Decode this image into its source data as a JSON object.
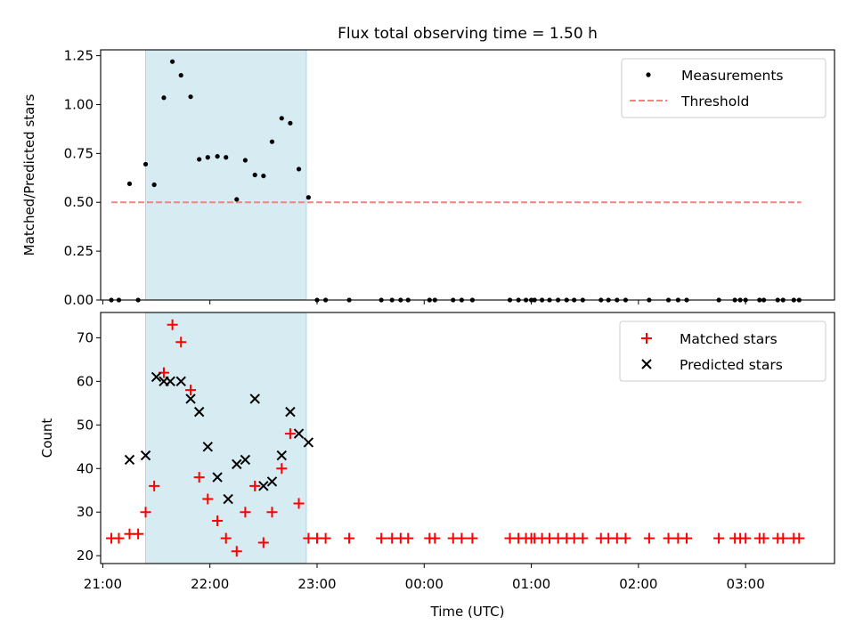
{
  "chart_data": {
    "title": "Flux total observing time = 1.50 h",
    "xlabel": "Time (UTC)",
    "x_tick_labels": [
      "21:00",
      "22:00",
      "23:00",
      "00:00",
      "01:00",
      "02:00",
      "03:00"
    ],
    "x_tick_hours": [
      21,
      22,
      23,
      24,
      25,
      26,
      27
    ],
    "xlim": [
      20.98,
      27.83
    ],
    "shaded_span": [
      21.4,
      22.9
    ],
    "colors": {
      "shade": "#add8e6",
      "threshold": "#ff7f7f",
      "matched": "#ff0000",
      "predicted": "#000000",
      "measure": "#000000"
    },
    "panels": [
      {
        "type": "scatter",
        "ylabel": "Matched/Predicted stars",
        "ylim": [
          0,
          1.28
        ],
        "yticks": [
          0,
          0.25,
          0.5,
          0.75,
          1.0,
          1.25
        ],
        "ytick_labels": [
          "0.00",
          "0.25",
          "0.50",
          "0.75",
          "1.00",
          "1.25"
        ],
        "legend_position": "upper right",
        "threshold": {
          "name": "Threshold",
          "y": 0.5,
          "x_range": [
            21.08,
            27.52
          ]
        },
        "series": [
          {
            "name": "Measurements",
            "points": [
              [
                21.08,
                0
              ],
              [
                21.15,
                0
              ],
              [
                21.25,
                0.595
              ],
              [
                21.33,
                0
              ],
              [
                21.4,
                0.695
              ],
              [
                21.48,
                0.59
              ],
              [
                21.57,
                1.035
              ],
              [
                21.65,
                1.22
              ],
              [
                21.73,
                1.15
              ],
              [
                21.82,
                1.04
              ],
              [
                21.9,
                0.72
              ],
              [
                21.98,
                0.73
              ],
              [
                22.07,
                0.735
              ],
              [
                22.15,
                0.73
              ],
              [
                22.25,
                0.515
              ],
              [
                22.33,
                0.715
              ],
              [
                22.42,
                0.64
              ],
              [
                22.5,
                0.635
              ],
              [
                22.58,
                0.81
              ],
              [
                22.67,
                0.93
              ],
              [
                22.75,
                0.905
              ],
              [
                22.83,
                0.67
              ],
              [
                22.92,
                0.525
              ],
              [
                23.0,
                0
              ],
              [
                23.08,
                0
              ],
              [
                23.3,
                0
              ],
              [
                23.6,
                0
              ],
              [
                23.7,
                0
              ],
              [
                23.78,
                0
              ],
              [
                23.85,
                0
              ],
              [
                24.05,
                0
              ],
              [
                24.1,
                0
              ],
              [
                24.27,
                0
              ],
              [
                24.35,
                0
              ],
              [
                24.45,
                0
              ],
              [
                24.8,
                0
              ],
              [
                24.88,
                0
              ],
              [
                24.95,
                0
              ],
              [
                25.0,
                0
              ],
              [
                25.03,
                0
              ],
              [
                25.1,
                0
              ],
              [
                25.17,
                0
              ],
              [
                25.25,
                0
              ],
              [
                25.33,
                0
              ],
              [
                25.4,
                0
              ],
              [
                25.48,
                0
              ],
              [
                25.65,
                0
              ],
              [
                25.72,
                0
              ],
              [
                25.8,
                0
              ],
              [
                25.88,
                0
              ],
              [
                26.1,
                0
              ],
              [
                26.28,
                0
              ],
              [
                26.37,
                0
              ],
              [
                26.45,
                0
              ],
              [
                26.75,
                0
              ],
              [
                26.9,
                0
              ],
              [
                26.95,
                0
              ],
              [
                27.0,
                0
              ],
              [
                27.13,
                0
              ],
              [
                27.17,
                0
              ],
              [
                27.3,
                0
              ],
              [
                27.35,
                0
              ],
              [
                27.45,
                0
              ],
              [
                27.5,
                0
              ]
            ]
          }
        ]
      },
      {
        "type": "scatter",
        "ylabel": "Count",
        "ylim": [
          18.2,
          75.8
        ],
        "yticks": [
          20,
          30,
          40,
          50,
          60,
          70
        ],
        "ytick_labels": [
          "20",
          "30",
          "40",
          "50",
          "60",
          "70"
        ],
        "legend_position": "upper right",
        "series": [
          {
            "name": "Matched stars",
            "points": [
              [
                21.08,
                24
              ],
              [
                21.15,
                24
              ],
              [
                21.25,
                25
              ],
              [
                21.33,
                25
              ],
              [
                21.4,
                30
              ],
              [
                21.48,
                36
              ],
              [
                21.57,
                62
              ],
              [
                21.65,
                73
              ],
              [
                21.73,
                69
              ],
              [
                21.82,
                58
              ],
              [
                21.9,
                38
              ],
              [
                21.98,
                33
              ],
              [
                22.07,
                28
              ],
              [
                22.15,
                24
              ],
              [
                22.25,
                21
              ],
              [
                22.33,
                30
              ],
              [
                22.42,
                36
              ],
              [
                22.5,
                23
              ],
              [
                22.58,
                30
              ],
              [
                22.67,
                40
              ],
              [
                22.75,
                48
              ],
              [
                22.83,
                32
              ],
              [
                22.92,
                24
              ],
              [
                23.0,
                24
              ],
              [
                23.08,
                24
              ],
              [
                23.3,
                24
              ],
              [
                23.6,
                24
              ],
              [
                23.7,
                24
              ],
              [
                23.78,
                24
              ],
              [
                23.85,
                24
              ],
              [
                24.05,
                24
              ],
              [
                24.1,
                24
              ],
              [
                24.27,
                24
              ],
              [
                24.35,
                24
              ],
              [
                24.45,
                24
              ],
              [
                24.8,
                24
              ],
              [
                24.88,
                24
              ],
              [
                24.95,
                24
              ],
              [
                25.0,
                24
              ],
              [
                25.03,
                24
              ],
              [
                25.1,
                24
              ],
              [
                25.17,
                24
              ],
              [
                25.25,
                24
              ],
              [
                25.33,
                24
              ],
              [
                25.4,
                24
              ],
              [
                25.48,
                24
              ],
              [
                25.65,
                24
              ],
              [
                25.72,
                24
              ],
              [
                25.8,
                24
              ],
              [
                25.88,
                24
              ],
              [
                26.1,
                24
              ],
              [
                26.28,
                24
              ],
              [
                26.37,
                24
              ],
              [
                26.45,
                24
              ],
              [
                26.75,
                24
              ],
              [
                26.9,
                24
              ],
              [
                26.95,
                24
              ],
              [
                27.0,
                24
              ],
              [
                27.13,
                24
              ],
              [
                27.17,
                24
              ],
              [
                27.3,
                24
              ],
              [
                27.35,
                24
              ],
              [
                27.45,
                24
              ],
              [
                27.5,
                24
              ]
            ]
          },
          {
            "name": "Predicted stars",
            "points": [
              [
                21.25,
                42
              ],
              [
                21.4,
                43
              ],
              [
                21.5,
                61
              ],
              [
                21.57,
                60
              ],
              [
                21.63,
                60
              ],
              [
                21.73,
                60
              ],
              [
                21.82,
                56
              ],
              [
                21.9,
                53
              ],
              [
                21.98,
                45
              ],
              [
                22.07,
                38
              ],
              [
                22.17,
                33
              ],
              [
                22.25,
                41
              ],
              [
                22.33,
                42
              ],
              [
                22.42,
                56
              ],
              [
                22.5,
                36
              ],
              [
                22.58,
                37
              ],
              [
                22.67,
                43
              ],
              [
                22.75,
                53
              ],
              [
                22.83,
                48
              ],
              [
                22.92,
                46
              ]
            ]
          }
        ]
      }
    ]
  }
}
